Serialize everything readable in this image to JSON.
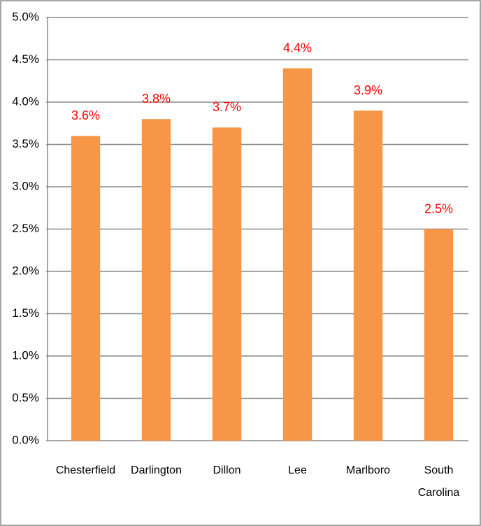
{
  "chart_data": {
    "type": "bar",
    "categories": [
      "Chesterfield",
      "Darlington",
      "Dillon",
      "Lee",
      "Marlboro",
      "South Carolina"
    ],
    "values": [
      3.6,
      3.8,
      3.7,
      4.4,
      3.9,
      2.5
    ],
    "value_labels": [
      "3.6%",
      "3.8%",
      "3.7%",
      "4.4%",
      "3.9%",
      "2.5%"
    ],
    "color": "#f79646",
    "label_color": "#ff0000",
    "ylim": [
      0,
      5
    ],
    "yticks": [
      {
        "value": 0,
        "label": "0.0%"
      },
      {
        "value": 0.5,
        "label": "0.5%"
      },
      {
        "value": 1,
        "label": "1.0%"
      },
      {
        "value": 1.5,
        "label": "1.5%"
      },
      {
        "value": 2,
        "label": "2.0%"
      },
      {
        "value": 2.5,
        "label": "2.5%"
      },
      {
        "value": 3,
        "label": "3.0%"
      },
      {
        "value": 3.5,
        "label": "3.5%"
      },
      {
        "value": 4,
        "label": "4.0%"
      },
      {
        "value": 4.5,
        "label": "4.5%"
      },
      {
        "value": 5,
        "label": "5.0%"
      }
    ],
    "grid": true
  }
}
